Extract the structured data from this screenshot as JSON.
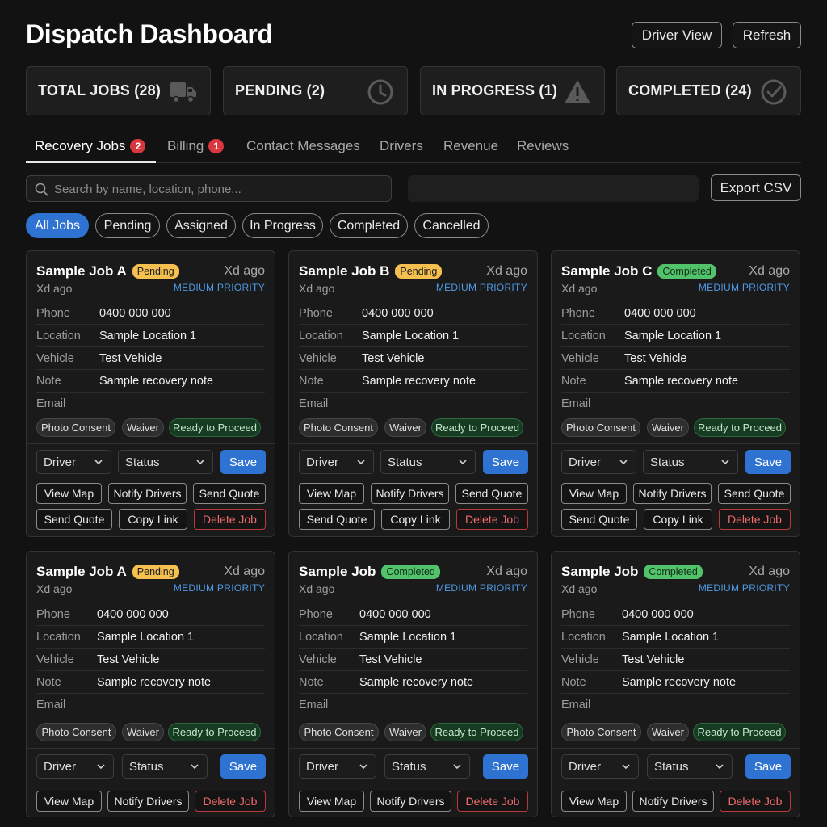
{
  "header": {
    "title": "Dispatch Dashboard",
    "driver_view_label": "Driver View",
    "refresh_label": "Refresh"
  },
  "stats": [
    {
      "label": "TOTAL JOBS (28)",
      "icon": "truck-icon"
    },
    {
      "label": "PENDING (2)",
      "icon": "clock-icon"
    },
    {
      "label": "IN PROGRESS (1)",
      "icon": "warning-icon"
    },
    {
      "label": "COMPLETED (24)",
      "icon": "check-circle-icon"
    }
  ],
  "tabs": [
    {
      "label": "Recovery Jobs",
      "badge": "2"
    },
    {
      "label": "Billing",
      "badge": "1"
    },
    {
      "label": "Contact Messages"
    },
    {
      "label": "Drivers"
    },
    {
      "label": "Revenue"
    },
    {
      "label": "Reviews"
    }
  ],
  "search": {
    "placeholder": "Search by name, location, phone...",
    "value": ""
  },
  "export_label": "Export CSV",
  "filters": [
    "All Jobs",
    "Pending",
    "Assigned",
    "In Progress",
    "Completed",
    "Cancelled"
  ],
  "labels": {
    "phone": "Phone",
    "location": "Location",
    "vehicle": "Vehicle",
    "note": "Note",
    "email": "Email",
    "driver": "Driver",
    "status": "Status",
    "save": "Save",
    "view_map": "View Map",
    "notify_drivers": "Notify Drivers",
    "send_quote": "Send Quote",
    "copy_link": "Copy Link",
    "delete_job": "Delete Job",
    "photo_consent": "Photo Consent",
    "waiver": "Waiver",
    "ready": "Ready to Proceed"
  },
  "cards": [
    {
      "title": "Sample Job A",
      "badge": "Pending",
      "time": "Xd ago",
      "sub": "Xd ago",
      "priority": "MEDIUM PRIORITY",
      "phone": "0400 000 000",
      "location": "Sample Location 1",
      "vehicle": "Test Vehicle",
      "note": "Sample recovery note",
      "email": ""
    },
    {
      "title": "Sample Job B",
      "badge": "Pending",
      "time": "Xd ago",
      "sub": "Xd ago",
      "priority": "MEDIUM PRIORITY",
      "phone": "0400 000 000",
      "location": "Sample Location 1",
      "vehicle": "Test Vehicle",
      "note": "Sample recovery note",
      "email": ""
    },
    {
      "title": "Sample Job C",
      "badge": "Completed",
      "time": "Xd ago",
      "sub": "Xd ago",
      "priority": "MEDIUM PRIORITY",
      "phone": "0400 000 000",
      "location": "Sample Location 1",
      "vehicle": "Test Vehicle",
      "note": "Sample recovery note",
      "email": ""
    },
    {
      "title": "Sample Job A",
      "badge": "Pending",
      "time": "Xd ago",
      "sub": "Xd ago",
      "priority": "MEDIUM PRIORITY",
      "phone": "0400 000 000",
      "location": "Sample Location 1",
      "vehicle": "Test Vehicle",
      "note": "Sample recovery note",
      "email": ""
    },
    {
      "title": "Sample Job",
      "badge": "Completed",
      "time": "Xd ago",
      "sub": "Xd ago",
      "priority": "MEDIUM PRIORITY",
      "phone": "0400 000 000",
      "location": "Sample Location 1",
      "vehicle": "Test Vehicle",
      "note": "Sample recovery note",
      "email": ""
    },
    {
      "title": "Sample Job",
      "badge": "Completed",
      "time": "Xd ago",
      "sub": "Xd ago",
      "priority": "MEDIUM PRIORITY",
      "phone": "0400 000 000",
      "location": "Sample Location 1",
      "vehicle": "Test Vehicle",
      "note": "Sample recovery note",
      "email": ""
    }
  ],
  "colors": {
    "background": "#121212",
    "card": "#1a1a1a",
    "accent_blue": "#2f73d2",
    "pending": "#f5c04f",
    "completed": "#52c36b",
    "danger": "#f06b6e",
    "badge_red": "#d9363e"
  }
}
